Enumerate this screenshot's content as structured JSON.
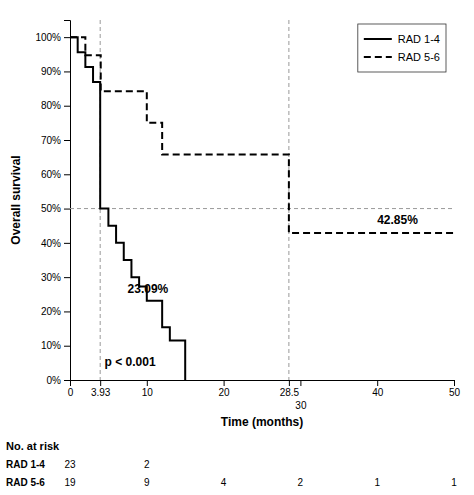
{
  "chart_data": {
    "type": "step",
    "xlabel": "Time (months)",
    "ylabel": "Overall survival",
    "series": [
      {
        "name": "RAD 1-4",
        "color": "#000000",
        "line_style": "solid",
        "x": [
          0,
          1,
          2,
          3,
          3.93,
          3.93,
          5,
          6,
          7,
          8,
          9,
          10,
          11,
          12,
          13,
          14,
          15
        ],
        "values": [
          1.0,
          0.956,
          0.913,
          0.869,
          0.869,
          0.5,
          0.45,
          0.4,
          0.35,
          0.3,
          0.2727,
          0.2309,
          0.2309,
          0.1538,
          0.1154,
          0.1154,
          0.0
        ]
      },
      {
        "name": "RAD 5-6",
        "color": "#000000",
        "line_style": "dashed",
        "x": [
          0,
          2,
          4,
          6,
          8,
          10,
          12,
          14,
          28.5,
          28.5,
          50
        ],
        "values": [
          1.0,
          0.947,
          0.842,
          0.842,
          0.842,
          0.75,
          0.6578,
          0.6578,
          0.6578,
          0.4285,
          0.4285
        ]
      }
    ],
    "xlim": [
      0,
      50
    ],
    "ylim": [
      0,
      1.05
    ],
    "xticks": [
      0,
      3.93,
      10,
      20,
      28.5,
      30,
      40,
      50
    ],
    "yticks": [
      {
        "value": 0,
        "label": "0%"
      },
      {
        "value": 0.1,
        "label": "10%"
      },
      {
        "value": 0.2,
        "label": "20%"
      },
      {
        "value": 0.3,
        "label": "30%"
      },
      {
        "value": 0.4,
        "label": "40%"
      },
      {
        "value": 0.5,
        "label": "50%"
      },
      {
        "value": 0.6,
        "label": "60%"
      },
      {
        "value": 0.7,
        "label": "70%"
      },
      {
        "value": 0.8,
        "label": "80%"
      },
      {
        "value": 0.9,
        "label": "90%"
      },
      {
        "value": 1.0,
        "label": "100%"
      }
    ],
    "hlines": [
      0.5
    ],
    "vlines": [
      3.93,
      28.5
    ],
    "annotations": [
      {
        "text": "23.09%",
        "x": 7.5,
        "y": 0.255
      },
      {
        "text": "42.85%",
        "x": 40,
        "y": 0.455
      },
      {
        "text": "p < 0.001",
        "x": 4.5,
        "y": 0.04
      }
    ],
    "legend": "upper right",
    "grid": false,
    "at_risk": {
      "title": "No. at risk",
      "series": [
        {
          "name": "RAD 1-4",
          "x": [
            0,
            10
          ],
          "values": [
            23,
            2
          ]
        },
        {
          "name": "RAD 5-6",
          "x": [
            0,
            10,
            20,
            30,
            40,
            50
          ],
          "values": [
            19,
            9,
            4,
            2,
            1,
            1
          ]
        }
      ]
    }
  }
}
